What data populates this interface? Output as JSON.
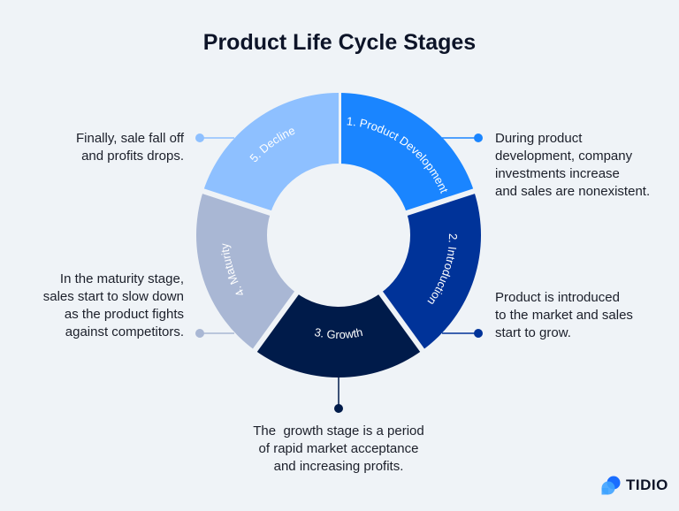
{
  "title": "Product Life Cycle Stages",
  "colors": {
    "background": "#eff3f7",
    "stage1": "#1a85ff",
    "stage2": "#003399",
    "stage3": "#001b4a",
    "stage4": "#a9b7d4",
    "stage5": "#8ec0ff"
  },
  "stages": [
    {
      "label": "1. Product Development",
      "description": [
        "During product",
        "development, company",
        "investments increase",
        "and sales are nonexistent."
      ]
    },
    {
      "label": "2. Introduction",
      "description": [
        "Product is introduced",
        "to the market and sales",
        "start to grow."
      ]
    },
    {
      "label": "3. Growth",
      "description": [
        "The  growth stage is a period",
        "of rapid market acceptance",
        "and increasing profits."
      ]
    },
    {
      "label": "4. Maturity",
      "description": [
        "In the maturity stage,",
        "sales start to slow down",
        "as the product fights",
        "against competitors."
      ]
    },
    {
      "label": "5. Decline",
      "description": [
        "Finally, sale fall off",
        "and profits drops."
      ]
    }
  ],
  "logo": {
    "text": "TIDIO",
    "icon": "tidio-bubbles-icon"
  }
}
